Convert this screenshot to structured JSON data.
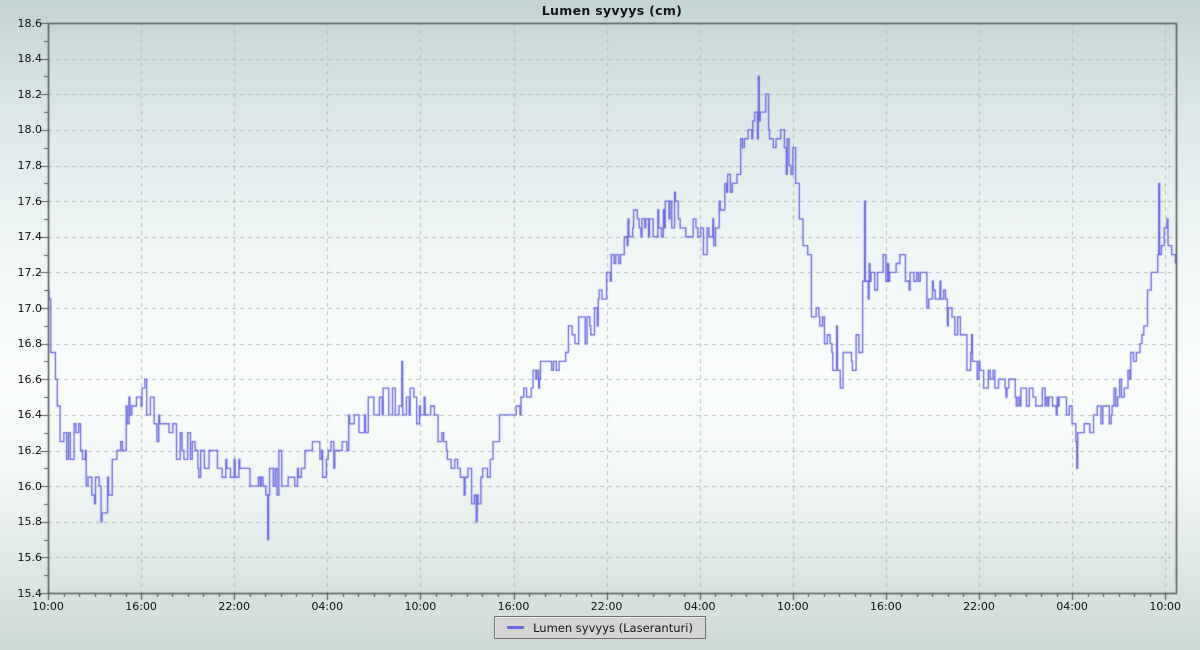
{
  "chart_data": {
    "type": "line",
    "title": "Lumen syvyys (cm)",
    "xlabel": "",
    "ylabel": "",
    "grid": {
      "dashed": true,
      "color": "#b7bebe",
      "major_only": true
    },
    "plot_border_color": "#585d5d",
    "x_axis": {
      "unit": "time-of-day over 3 days",
      "range_hours": [
        0,
        72.7
      ],
      "major_tick_hours": 6,
      "minor_tick_hours": 1,
      "tick_labels": [
        "10:00",
        "16:00",
        "22:00",
        "04:00",
        "10:00",
        "16:00",
        "22:00",
        "04:00",
        "10:00",
        "16:00",
        "22:00",
        "04:00",
        "10:00"
      ]
    },
    "y_axis": {
      "min": 15.4,
      "max": 18.6,
      "major_step": 0.2,
      "minor_step": 0.1,
      "tick_labels": [
        "18.6",
        "18.4",
        "18.2",
        "18.0",
        "17.8",
        "17.6",
        "17.4",
        "17.2",
        "17.0",
        "16.8",
        "16.6",
        "16.4",
        "16.2",
        "16.0",
        "15.8",
        "15.6",
        "15.4"
      ]
    },
    "legend": {
      "position": "bottom-center",
      "entries": [
        {
          "label": "Lumen syvyys (Laseranturi)",
          "color": "#6b6be0"
        }
      ]
    },
    "series": [
      {
        "name": "Lumen syvyys (Laseranturi)",
        "color": "#6b6be0",
        "style": "noisy sensor step-line, ~3 min samples, quantized",
        "trend_points": [
          [
            0,
            17.1
          ],
          [
            0.15,
            16.85
          ],
          [
            0.4,
            16.55
          ],
          [
            0.7,
            16.35
          ],
          [
            1,
            16.2
          ],
          [
            1.5,
            16.25
          ],
          [
            2,
            16.3
          ],
          [
            2.5,
            16.1
          ],
          [
            3,
            15.95
          ],
          [
            3.5,
            15.9
          ],
          [
            4,
            16.05
          ],
          [
            4.5,
            16.2
          ],
          [
            5,
            16.35
          ],
          [
            5.5,
            16.5
          ],
          [
            6,
            16.45
          ],
          [
            6.5,
            16.4
          ],
          [
            7,
            16.35
          ],
          [
            7.5,
            16.3
          ],
          [
            8,
            16.25
          ],
          [
            8.5,
            16.2
          ],
          [
            9,
            16.2
          ],
          [
            9.5,
            16.15
          ],
          [
            10,
            16.15
          ],
          [
            11,
            16.1
          ],
          [
            12,
            16.1
          ],
          [
            13,
            16.05
          ],
          [
            14,
            16.0
          ],
          [
            15,
            16.05
          ],
          [
            16,
            16.05
          ],
          [
            16.5,
            16.15
          ],
          [
            17,
            16.25
          ],
          [
            17.5,
            16.2
          ],
          [
            18,
            16.15
          ],
          [
            18.5,
            16.2
          ],
          [
            19,
            16.25
          ],
          [
            19.5,
            16.3
          ],
          [
            20,
            16.35
          ],
          [
            20.5,
            16.4
          ],
          [
            21,
            16.45
          ],
          [
            22,
            16.45
          ],
          [
            22.5,
            16.5
          ],
          [
            23,
            16.5
          ],
          [
            23.5,
            16.45
          ],
          [
            24,
            16.4
          ],
          [
            24.5,
            16.4
          ],
          [
            25,
            16.35
          ],
          [
            25.5,
            16.25
          ],
          [
            26,
            16.15
          ],
          [
            26.5,
            16.1
          ],
          [
            27,
            16.0
          ],
          [
            27.5,
            15.95
          ],
          [
            28,
            16.0
          ],
          [
            28.5,
            16.1
          ],
          [
            29,
            16.3
          ],
          [
            29.5,
            16.4
          ],
          [
            30,
            16.45
          ],
          [
            30.5,
            16.5
          ],
          [
            31,
            16.55
          ],
          [
            31.5,
            16.6
          ],
          [
            32,
            16.65
          ],
          [
            32.5,
            16.7
          ],
          [
            33,
            16.75
          ],
          [
            33.5,
            16.8
          ],
          [
            34,
            16.85
          ],
          [
            34.5,
            16.9
          ],
          [
            35,
            16.95
          ],
          [
            35.5,
            17.0
          ],
          [
            36,
            17.1
          ],
          [
            36.5,
            17.25
          ],
          [
            37,
            17.35
          ],
          [
            37.5,
            17.45
          ],
          [
            38,
            17.5
          ],
          [
            38.5,
            17.5
          ],
          [
            39,
            17.45
          ],
          [
            39.5,
            17.5
          ],
          [
            40,
            17.5
          ],
          [
            40.5,
            17.55
          ],
          [
            41,
            17.5
          ],
          [
            41.5,
            17.45
          ],
          [
            42,
            17.4
          ],
          [
            42.5,
            17.35
          ],
          [
            43,
            17.45
          ],
          [
            43.5,
            17.6
          ],
          [
            44,
            17.7
          ],
          [
            44.5,
            17.85
          ],
          [
            45,
            17.95
          ],
          [
            45.5,
            18.05
          ],
          [
            46,
            18.05
          ],
          [
            46.5,
            18.0
          ],
          [
            47,
            17.95
          ],
          [
            47.5,
            17.85
          ],
          [
            48,
            17.8
          ],
          [
            48.3,
            17.6
          ],
          [
            48.7,
            17.35
          ],
          [
            49,
            17.15
          ],
          [
            49.5,
            16.9
          ],
          [
            50,
            16.85
          ],
          [
            50.5,
            16.8
          ],
          [
            51,
            16.75
          ],
          [
            51.5,
            16.7
          ],
          [
            52,
            16.75
          ],
          [
            52.5,
            17.0
          ],
          [
            53,
            17.15
          ],
          [
            53.5,
            17.2
          ],
          [
            54,
            17.2
          ],
          [
            55,
            17.25
          ],
          [
            55.5,
            17.2
          ],
          [
            56,
            17.15
          ],
          [
            56.5,
            17.1
          ],
          [
            57,
            17.1
          ],
          [
            57.5,
            17.05
          ],
          [
            58,
            16.95
          ],
          [
            58.5,
            16.9
          ],
          [
            59,
            16.85
          ],
          [
            59.5,
            16.75
          ],
          [
            60,
            16.65
          ],
          [
            60.5,
            16.6
          ],
          [
            61,
            16.6
          ],
          [
            61.5,
            16.55
          ],
          [
            62,
            16.55
          ],
          [
            62.5,
            16.5
          ],
          [
            63,
            16.5
          ],
          [
            64,
            16.5
          ],
          [
            64.5,
            16.45
          ],
          [
            65,
            16.45
          ],
          [
            65.5,
            16.4
          ],
          [
            66,
            16.35
          ],
          [
            66.5,
            16.3
          ],
          [
            67,
            16.35
          ],
          [
            67.5,
            16.4
          ],
          [
            68,
            16.4
          ],
          [
            68.5,
            16.45
          ],
          [
            69,
            16.55
          ],
          [
            69.5,
            16.65
          ],
          [
            70,
            16.75
          ],
          [
            70.5,
            16.9
          ],
          [
            71,
            17.1
          ],
          [
            71.4,
            17.3
          ],
          [
            71.8,
            17.45
          ],
          [
            72.1,
            17.45
          ],
          [
            72.4,
            17.3
          ],
          [
            72.7,
            17.15
          ]
        ],
        "notable_spikes": [
          [
            0,
            17.1
          ],
          [
            3.4,
            15.8
          ],
          [
            14.15,
            15.7
          ],
          [
            22.8,
            16.7
          ],
          [
            27.6,
            15.8
          ],
          [
            45.8,
            18.3
          ],
          [
            52.6,
            17.6
          ],
          [
            66.3,
            16.1
          ],
          [
            71.6,
            17.7
          ]
        ],
        "noise": {
          "amplitude_cm": 0.1,
          "quantization_cm": 0.05,
          "regions": [
            [
              12,
              18,
              0.08
            ],
            [
              48,
              53,
              0.14
            ],
            [
              60,
              68,
              0.08
            ]
          ]
        }
      }
    ]
  },
  "colors": {
    "background_top": "#c2d3d3",
    "background_middle": "#fbfdfd",
    "background_bottom": "#ccdad6",
    "line": "#6b6be0",
    "grid": "#b7bebe",
    "border": "#585d5d",
    "legend_bg": "#d4d4d4",
    "text": "#0e0e0e"
  }
}
